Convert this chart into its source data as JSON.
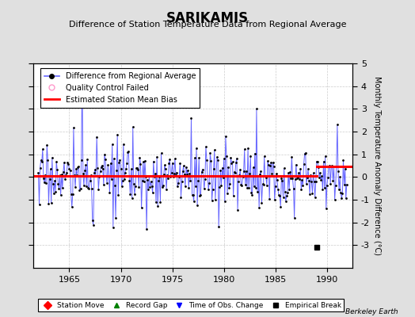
{
  "title": "SARIKAMIS",
  "subtitle": "Difference of Station Temperature Data from Regional Average",
  "ylabel": "Monthly Temperature Anomaly Difference (°C)",
  "xlabel_years": [
    1965,
    1970,
    1975,
    1980,
    1985,
    1990
  ],
  "ylim": [
    -4,
    5
  ],
  "yticks": [
    -3,
    -2,
    -1,
    0,
    1,
    2,
    3,
    4,
    5
  ],
  "xlim": [
    1961.5,
    1992.5
  ],
  "bias_line_segments": [
    {
      "x": [
        1961.5,
        1989.0
      ],
      "y": [
        0.05,
        0.05
      ]
    },
    {
      "x": [
        1989.0,
        1992.5
      ],
      "y": [
        0.45,
        0.45
      ]
    }
  ],
  "empirical_break_x": 1989.0,
  "empirical_break_y": -3.1,
  "bg_color": "#e0e0e0",
  "plot_bg_color": "#ffffff",
  "grid_color": "#cccccc",
  "line_color": "#6666ff",
  "dot_color": "#000000",
  "bias_color": "#ff0000",
  "watermark": "Berkeley Earth",
  "title_fontsize": 12,
  "subtitle_fontsize": 8,
  "tick_fontsize": 8,
  "ylabel_fontsize": 7
}
